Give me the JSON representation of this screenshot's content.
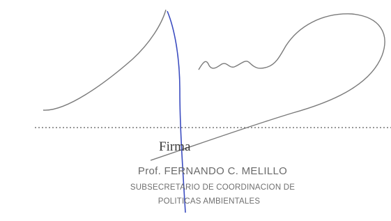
{
  "signature": {
    "label": "Firma",
    "name": "Prof. FERNANDO C. MELILLO",
    "title_line_1": "SUBSECRETARIO DE COORDINACION DE",
    "title_line_2": "POLITICAS AMBIENTALES"
  }
}
